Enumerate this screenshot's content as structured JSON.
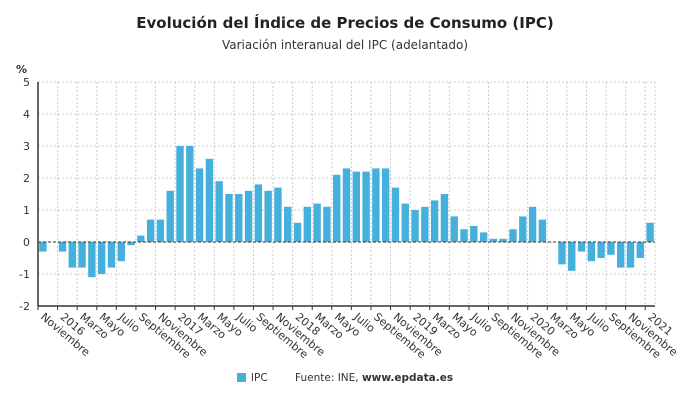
{
  "chart_data": {
    "type": "bar",
    "title": "Evolución del Índice de Precios de Consumo (IPC)",
    "subtitle": "Variación interanual del IPC (adelantado)",
    "ylabel": "%",
    "ylim": [
      -2,
      5
    ],
    "yticks": [
      -2,
      -1,
      0,
      1,
      2,
      3,
      4,
      5
    ],
    "grid": true,
    "legend_position": "bottom",
    "color": "#46b0dc",
    "series": [
      {
        "name": "IPC",
        "values": [
          -0.3,
          0.0,
          -0.3,
          -0.8,
          -0.8,
          -1.1,
          -1.0,
          -0.8,
          -0.6,
          -0.1,
          0.2,
          0.7,
          0.7,
          1.6,
          3.0,
          3.0,
          2.3,
          2.6,
          1.9,
          1.5,
          1.5,
          1.6,
          1.8,
          1.6,
          1.7,
          1.1,
          0.6,
          1.1,
          1.2,
          1.1,
          2.1,
          2.3,
          2.2,
          2.2,
          2.3,
          2.3,
          1.7,
          1.2,
          1.0,
          1.1,
          1.3,
          1.5,
          0.8,
          0.4,
          0.5,
          0.3,
          0.1,
          0.1,
          0.4,
          0.8,
          1.1,
          0.7,
          0.0,
          -0.7,
          -0.9,
          -0.3,
          -0.6,
          -0.5,
          -0.4,
          -0.8,
          -0.8,
          -0.5,
          0.6
        ]
      }
    ],
    "x_tick_labels": [
      "Noviembre",
      "2016",
      "Marzo",
      "Mayo",
      "Julio",
      "Septiembre",
      "Noviembre",
      "2017",
      "Marzo",
      "Mayo",
      "Julio",
      "Septiembre",
      "Noviembre",
      "2018",
      "Marzo",
      "Mayo",
      "Julio",
      "Septiembre",
      "Noviembre",
      "2019",
      "Marzo",
      "Mayo",
      "Julio",
      "Septiembre",
      "Noviembre",
      "2020",
      "Marzo",
      "Mayo",
      "Julio",
      "Septiembre",
      "Noviembre",
      "2021"
    ]
  },
  "legend": {
    "series": "IPC",
    "source_prefix": "Fuente: INE, ",
    "source_site": "www.epdata.es"
  }
}
